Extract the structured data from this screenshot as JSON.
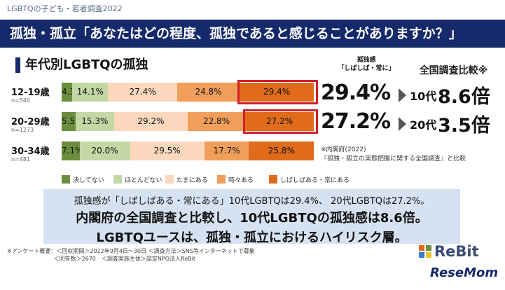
{
  "header": {
    "survey_label": "LGBTQの子ども・若者調査2022",
    "title": "孤独・孤立「あなたはどの程度、孤独であると感じることがありますか？」"
  },
  "section_title": "年代別LGBTQの孤独",
  "column_headers": {
    "loneliness_line1": "孤独感",
    "loneliness_line2": "「しばしば・常に」",
    "national": "全国調査比較※"
  },
  "chart_data": {
    "type": "bar",
    "orientation": "horizontal",
    "stacked": "100%",
    "categories": [
      "12-19歳",
      "20-29歳",
      "30-34歳"
    ],
    "sample_sizes": [
      "n=540",
      "n=1273",
      "n=481"
    ],
    "series": [
      {
        "name": "決してない",
        "color": "#6b8e3e",
        "values": [
          4.3,
          5.5,
          7.1
        ],
        "labels": [
          "4.3%",
          "5.5%",
          "7.1%"
        ]
      },
      {
        "name": "ほとんどない",
        "color": "#c3d8a5",
        "values": [
          14.1,
          15.3,
          20.0
        ],
        "labels": [
          "14.1%",
          "15.3%",
          "20.0%"
        ]
      },
      {
        "name": "たまにある",
        "color": "#fbd8bd",
        "values": [
          27.4,
          29.2,
          29.5
        ],
        "labels": [
          "27.4%",
          "29.2%",
          "29.5%"
        ]
      },
      {
        "name": "時々ある",
        "color": "#f19e5a",
        "values": [
          24.8,
          22.8,
          17.7
        ],
        "labels": [
          "24.8%",
          "22.8%",
          "17.7%"
        ]
      },
      {
        "name": "しばしばある・常にある",
        "color": "#e06b1b",
        "values": [
          29.4,
          27.2,
          25.8
        ],
        "labels": [
          "29.4%",
          "27.2%",
          "25.8%"
        ]
      }
    ],
    "highlighted": [
      [
        0,
        4
      ],
      [
        1,
        4
      ]
    ]
  },
  "comparison": [
    {
      "pct": "29.4%",
      "gen": "10代",
      "times": "8.6倍"
    },
    {
      "pct": "27.2%",
      "gen": "20代",
      "times": "3.5倍"
    }
  ],
  "source_note": {
    "line1": "※内閣府(2022)",
    "line2": "『孤独・孤立の実態把握に関する全国調査』と比較"
  },
  "summary": {
    "line1": "孤独感が「しばしばある・常にある」10代LGBTQは29.4%、 20代LGBTQは27.2%。",
    "line2": "内閣府の全国調査と比較し、10代LGBTQの孤独感は8.6倍。",
    "line3": "LGBTQユースは、孤独・孤立におけるハイリスク層。"
  },
  "footnote": {
    "line1": "※アンケート概要：＜回収期間＞2022年9月4日〜30日 ＜調査方法＞SNS等インターネットで募集",
    "line2": "　　　　　　　　 ＜回答数＞2670　＜調査実施主体＞認定NPO法人ReBit"
  },
  "logos": {
    "rebit": "ReBit",
    "resemom": "ReseMom"
  }
}
